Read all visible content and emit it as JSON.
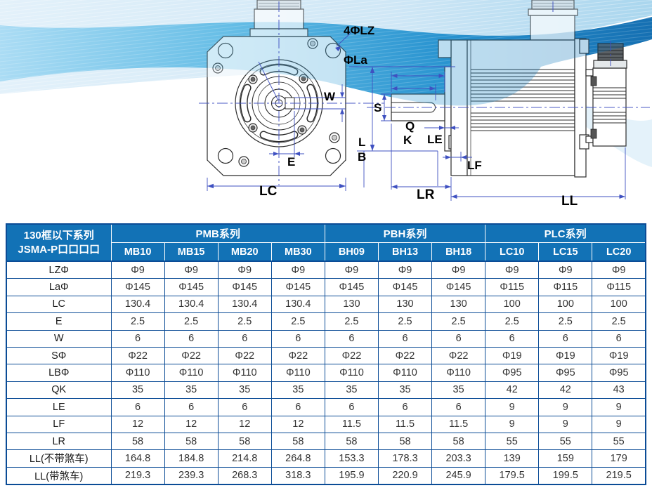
{
  "colors": {
    "header-bg": "#1272B6",
    "grid-border": "#0B4C96",
    "dimension-blue": "#3F51C1",
    "wave-deep": "#0D6BB0",
    "wave-light": "#CDE7F6"
  },
  "diagram": {
    "labels": {
      "lz": "4ΦLZ",
      "la": "ΦLa",
      "w": "W",
      "l": "L",
      "b": "B",
      "e": "E",
      "lc": "LC",
      "s": "S",
      "q": "Q",
      "k": "K",
      "le": "LE",
      "lf": "LF",
      "lr": "LR",
      "ll": "LL"
    }
  },
  "table": {
    "corner": {
      "line1": "130框以下系列",
      "line2": "JSMA-P口口口口"
    },
    "groups": [
      {
        "label": "PMB系列",
        "models": [
          "MB10",
          "MB15",
          "MB20",
          "MB30"
        ]
      },
      {
        "label": "PBH系列",
        "models": [
          "BH09",
          "BH13",
          "BH18"
        ]
      },
      {
        "label": "PLC系列",
        "models": [
          "LC10",
          "LC15",
          "LC20"
        ]
      }
    ],
    "rows": [
      {
        "label": "LZΦ",
        "values": [
          "Φ9",
          "Φ9",
          "Φ9",
          "Φ9",
          "Φ9",
          "Φ9",
          "Φ9",
          "Φ9",
          "Φ9",
          "Φ9"
        ]
      },
      {
        "label": "LaΦ",
        "values": [
          "Φ145",
          "Φ145",
          "Φ145",
          "Φ145",
          "Φ145",
          "Φ145",
          "Φ145",
          "Φ115",
          "Φ115",
          "Φ115"
        ]
      },
      {
        "label": "LC",
        "values": [
          "130.4",
          "130.4",
          "130.4",
          "130.4",
          "130",
          "130",
          "130",
          "100",
          "100",
          "100"
        ]
      },
      {
        "label": "E",
        "values": [
          "2.5",
          "2.5",
          "2.5",
          "2.5",
          "2.5",
          "2.5",
          "2.5",
          "2.5",
          "2.5",
          "2.5"
        ]
      },
      {
        "label": "W",
        "values": [
          "6",
          "6",
          "6",
          "6",
          "6",
          "6",
          "6",
          "6",
          "6",
          "6"
        ]
      },
      {
        "label": "SΦ",
        "values": [
          "Φ22",
          "Φ22",
          "Φ22",
          "Φ22",
          "Φ22",
          "Φ22",
          "Φ22",
          "Φ19",
          "Φ19",
          "Φ19"
        ]
      },
      {
        "label": "LBΦ",
        "values": [
          "Φ110",
          "Φ110",
          "Φ110",
          "Φ110",
          "Φ110",
          "Φ110",
          "Φ110",
          "Φ95",
          "Φ95",
          "Φ95"
        ]
      },
      {
        "label": "QK",
        "values": [
          "35",
          "35",
          "35",
          "35",
          "35",
          "35",
          "35",
          "42",
          "42",
          "43"
        ]
      },
      {
        "label": "LE",
        "values": [
          "6",
          "6",
          "6",
          "6",
          "6",
          "6",
          "6",
          "9",
          "9",
          "9"
        ]
      },
      {
        "label": "LF",
        "values": [
          "12",
          "12",
          "12",
          "12",
          "11.5",
          "11.5",
          "11.5",
          "9",
          "9",
          "9"
        ]
      },
      {
        "label": "LR",
        "values": [
          "58",
          "58",
          "58",
          "58",
          "58",
          "58",
          "58",
          "55",
          "55",
          "55"
        ]
      },
      {
        "label": "LL(不带煞车)",
        "values": [
          "164.8",
          "184.8",
          "214.8",
          "264.8",
          "153.3",
          "178.3",
          "203.3",
          "139",
          "159",
          "179"
        ]
      },
      {
        "label": "LL(带煞车)",
        "values": [
          "219.3",
          "239.3",
          "268.3",
          "318.3",
          "195.9",
          "220.9",
          "245.9",
          "179.5",
          "199.5",
          "219.5"
        ]
      }
    ]
  }
}
